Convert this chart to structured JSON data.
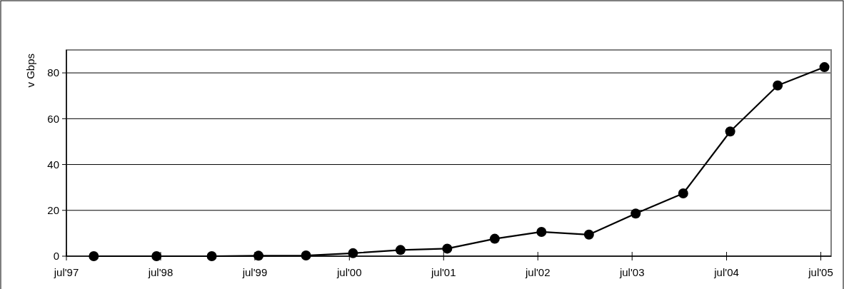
{
  "chart_data": {
    "type": "line",
    "ylabel": "v Gbps",
    "x": [
      "1997-10-15",
      "1998-06-15",
      "1999-01-15",
      "1999-07-15",
      "2000-01-15",
      "2000-07-15",
      "2001-01-15",
      "2001-07-15",
      "2002-01-15",
      "2002-07-15",
      "2003-01-15",
      "2003-07-15",
      "2004-01-15",
      "2004-07-15",
      "2005-01-15",
      "2005-07-15"
    ],
    "series": [
      {
        "color": "#000000",
        "values": [
          0,
          0,
          0,
          0.2,
          0.3,
          1.3,
          2.7,
          3.3,
          7.6,
          10.6,
          9.4,
          18.6,
          27.4,
          54.4,
          74.5,
          82.5
        ]
      }
    ],
    "xlim": [
      "1997-07-01",
      "2005-08-10"
    ],
    "xticks": [
      {
        "value": "1997-07-01",
        "label": "jul'97"
      },
      {
        "value": "1998-07-01",
        "label": "jul'98"
      },
      {
        "value": "1999-07-01",
        "label": "jul'99"
      },
      {
        "value": "2000-07-01",
        "label": "jul'00"
      },
      {
        "value": "2001-07-01",
        "label": "jul'01"
      },
      {
        "value": "2002-07-01",
        "label": "jul'02"
      },
      {
        "value": "2003-07-01",
        "label": "jul'03"
      },
      {
        "value": "2004-07-01",
        "label": "jul'04"
      },
      {
        "value": "2005-07-01",
        "label": "jul'05"
      }
    ],
    "ylim": [
      0,
      90
    ],
    "yticks": [
      0,
      20,
      40,
      60,
      80
    ],
    "grid": "y",
    "marker": "circle",
    "line_style": "solid"
  }
}
